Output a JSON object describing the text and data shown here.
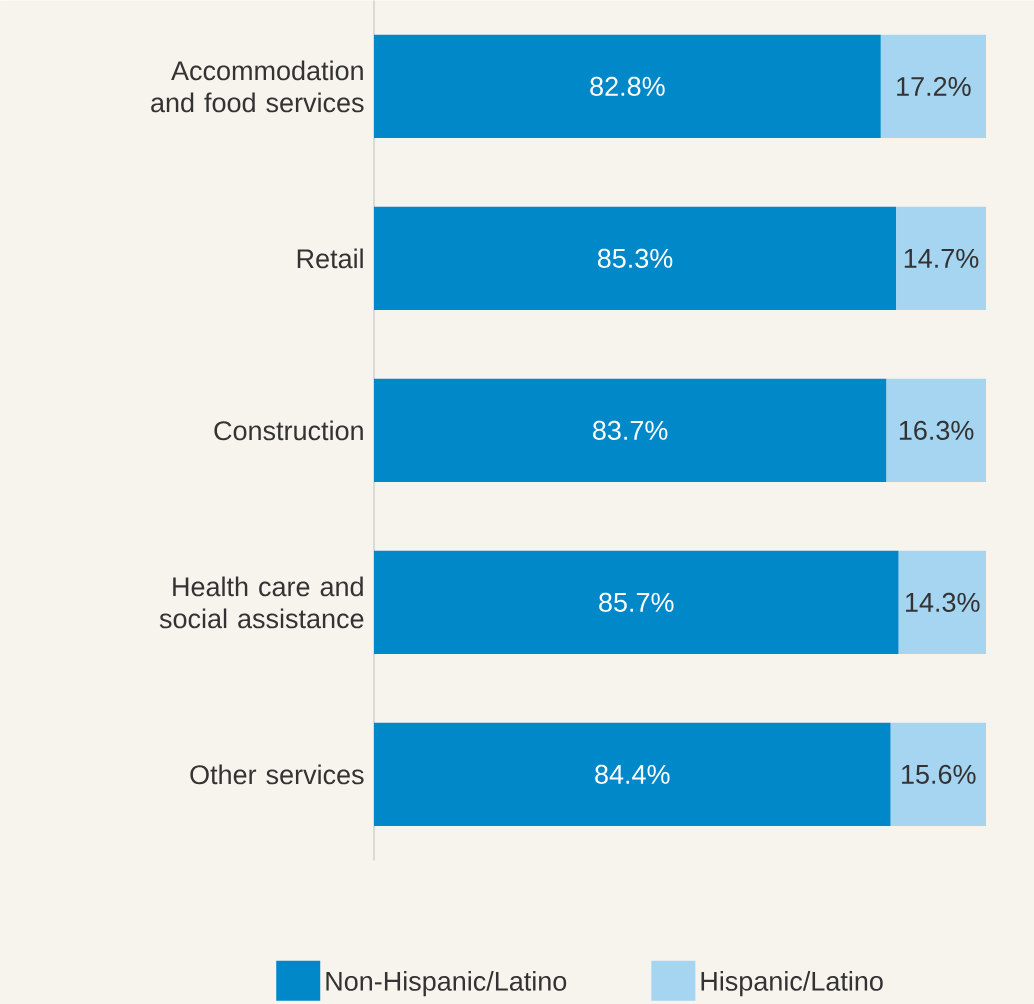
{
  "chart_data": {
    "type": "bar",
    "orientation": "horizontal",
    "stacked": true,
    "legend": "bottom",
    "categories": [
      "Accommodation and food services",
      "Retail",
      "Construction",
      "Health care and social assistance",
      "Other services"
    ],
    "series": [
      {
        "name": "Non-Hispanic/Latino",
        "color": "#0088c9",
        "values": [
          82.8,
          85.3,
          83.7,
          85.7,
          84.4
        ],
        "value_labels": [
          "82.8%",
          "85.3%",
          "83.7%",
          "85.7%",
          "84.4%"
        ]
      },
      {
        "name": "Hispanic/Latino",
        "color": "#a6d5f2",
        "values": [
          17.2,
          14.7,
          16.3,
          14.3,
          15.6
        ],
        "value_labels": [
          "17.2%",
          "14.7%",
          "16.3%",
          "14.3%",
          "15.6%"
        ]
      }
    ]
  }
}
